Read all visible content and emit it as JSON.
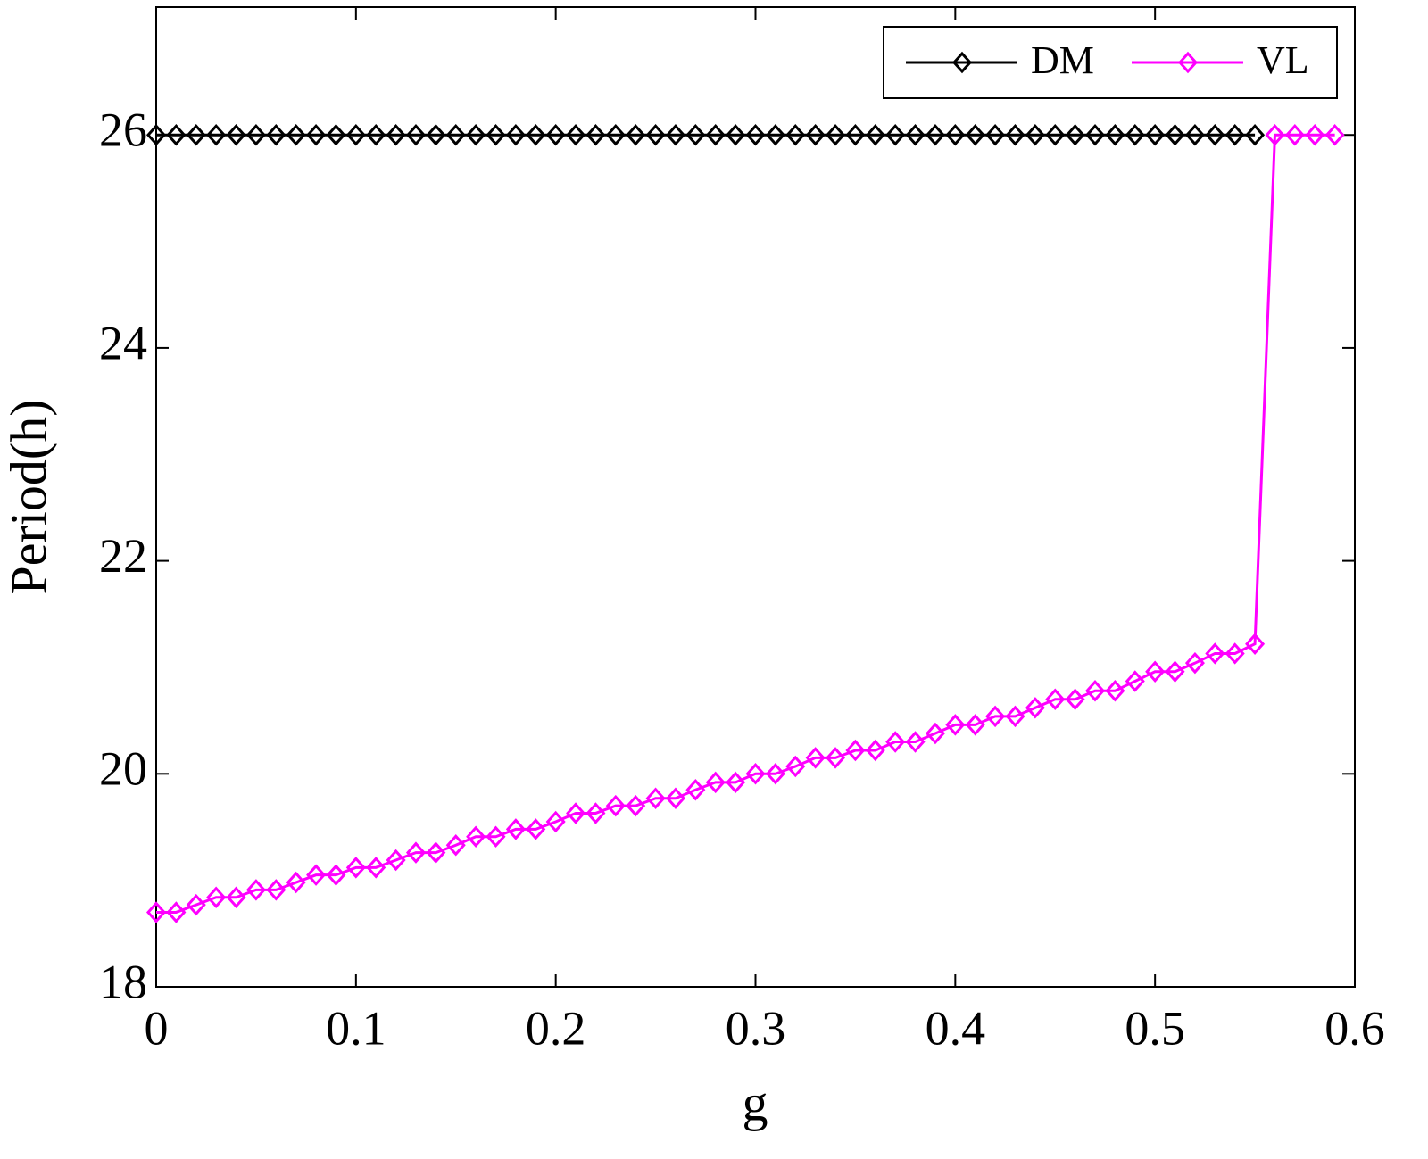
{
  "chart_data": {
    "type": "line",
    "xlabel": "g",
    "ylabel": "Period(h)",
    "xlim": [
      0,
      0.6
    ],
    "xticks": [
      0,
      0.1,
      0.2,
      0.3,
      0.4,
      0.5,
      0.6
    ],
    "ylim": [
      18,
      27.2
    ],
    "yticks": [
      18,
      20,
      22,
      24,
      26
    ],
    "legend": "upper right",
    "grid": false,
    "series": [
      {
        "name": "DM",
        "color": "#000000",
        "x": [
          0,
          0.01,
          0.02,
          0.03,
          0.04,
          0.05,
          0.06,
          0.07,
          0.08,
          0.09,
          0.1,
          0.11,
          0.12,
          0.13,
          0.14,
          0.15,
          0.16,
          0.17,
          0.18,
          0.19,
          0.2,
          0.21,
          0.22,
          0.23,
          0.24,
          0.25,
          0.26,
          0.27,
          0.28,
          0.29,
          0.3,
          0.31,
          0.32,
          0.33,
          0.34,
          0.35,
          0.36,
          0.37,
          0.38,
          0.39,
          0.4,
          0.41,
          0.42,
          0.43,
          0.44,
          0.45,
          0.46,
          0.47,
          0.48,
          0.49,
          0.5,
          0.51,
          0.52,
          0.53,
          0.54,
          0.55
        ],
        "values": [
          26,
          26,
          26,
          26,
          26,
          26,
          26,
          26,
          26,
          26,
          26,
          26,
          26,
          26,
          26,
          26,
          26,
          26,
          26,
          26,
          26,
          26,
          26,
          26,
          26,
          26,
          26,
          26,
          26,
          26,
          26,
          26,
          26,
          26,
          26,
          26,
          26,
          26,
          26,
          26,
          26,
          26,
          26,
          26,
          26,
          26,
          26,
          26,
          26,
          26,
          26,
          26,
          26,
          26,
          26,
          26
        ]
      },
      {
        "name": "VL",
        "color": "#ff00ff",
        "x": [
          0,
          0.01,
          0.02,
          0.03,
          0.04,
          0.05,
          0.06,
          0.07,
          0.08,
          0.09,
          0.1,
          0.11,
          0.12,
          0.13,
          0.14,
          0.15,
          0.16,
          0.17,
          0.18,
          0.19,
          0.2,
          0.21,
          0.22,
          0.23,
          0.24,
          0.25,
          0.26,
          0.27,
          0.28,
          0.29,
          0.3,
          0.31,
          0.32,
          0.33,
          0.34,
          0.35,
          0.36,
          0.37,
          0.38,
          0.39,
          0.4,
          0.41,
          0.42,
          0.43,
          0.44,
          0.45,
          0.46,
          0.47,
          0.48,
          0.49,
          0.5,
          0.51,
          0.52,
          0.53,
          0.54,
          0.55,
          0.56,
          0.57,
          0.58,
          0.59
        ],
        "values": [
          18.7,
          18.7,
          18.77,
          18.84,
          18.84,
          18.91,
          18.91,
          18.98,
          19.05,
          19.05,
          19.12,
          19.12,
          19.19,
          19.26,
          19.26,
          19.33,
          19.41,
          19.41,
          19.48,
          19.48,
          19.55,
          19.63,
          19.63,
          19.7,
          19.7,
          19.77,
          19.77,
          19.85,
          19.92,
          19.92,
          20.0,
          20.0,
          20.07,
          20.15,
          20.15,
          20.22,
          20.22,
          20.3,
          20.3,
          20.38,
          20.46,
          20.46,
          20.54,
          20.54,
          20.62,
          20.7,
          20.7,
          20.78,
          20.78,
          20.87,
          20.96,
          20.96,
          21.04,
          21.13,
          21.13,
          21.22,
          26,
          26,
          26,
          26
        ]
      }
    ]
  }
}
